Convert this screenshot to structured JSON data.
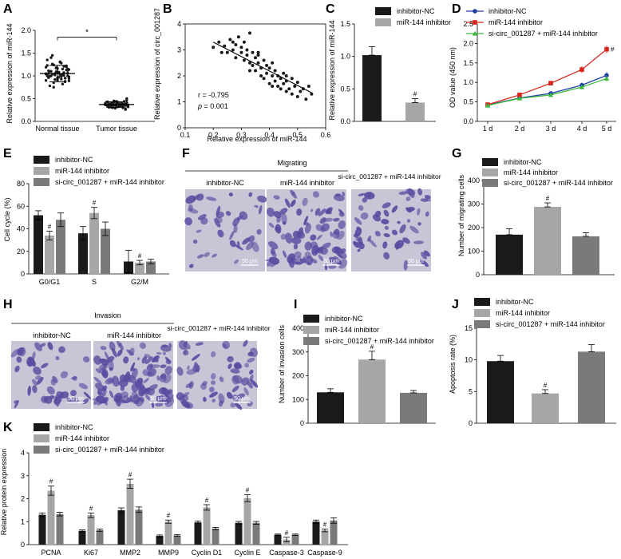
{
  "figure": {
    "panel_letters": [
      "A",
      "B",
      "C",
      "D",
      "E",
      "F",
      "G",
      "H",
      "I",
      "J",
      "K"
    ]
  },
  "colors": {
    "black": "#1a1a1a",
    "lightgray": "#a6a6a6",
    "darkgray": "#7a7a7a",
    "blue": "#1f3fa6",
    "red": "#d6261e",
    "green": "#3db83d",
    "cell": "#5a4aa0",
    "cellbg": "#c7c6d6"
  },
  "microscopy": {
    "F": {
      "group_label": "Migrating",
      "columns": [
        "inhibitor-NC",
        "miR-144 inhibitor",
        "si-circ_001287 + miR-144 inhibitor"
      ],
      "scale": "50 μm"
    },
    "H": {
      "group_label": "Invasion",
      "columns": [
        "inhibitor-NC",
        "miR-144 inhibitor",
        "si-circ_001287 + miR-144 inhibitor"
      ],
      "scale": "50 μm"
    }
  },
  "chart_data": [
    {
      "panel": "A",
      "type": "scatter",
      "categories": [
        "Normal tissue",
        "Tumor tissue"
      ],
      "means": [
        1.05,
        0.37
      ],
      "sd": [
        0.18,
        0.06
      ],
      "ylabel": "Relative expression of miR-144",
      "ylim": [
        0,
        2
      ],
      "yticks": [
        "0.0",
        "0.5",
        "1.0",
        "1.5",
        "2.0"
      ],
      "significance": "*",
      "normal_points": [
        1.05,
        0.98,
        1.12,
        1.22,
        0.88,
        1.01,
        1.15,
        0.93,
        1.3,
        1.08,
        0.96,
        1.18,
        1.02,
        0.85,
        1.26,
        1.1,
        0.99,
        1.05,
        1.35,
        0.9,
        1.14,
        1.0,
        1.2,
        0.95,
        1.07,
        0.82,
        1.28,
        1.03,
        0.97,
        1.16,
        1.09,
        0.92,
        1.24,
        1.04,
        1.4,
        0.78,
        1.11,
        1.0,
        1.19,
        0.94,
        1.06,
        1.13,
        0.87,
        1.21,
        1.02,
        0.99,
        1.31,
        1.08,
        0.91,
        1.17,
        1.05,
        0.75,
        1.45,
        1.0,
        1.1,
        0.96,
        1.23,
        1.04,
        0.89,
        1.15
      ],
      "tumor_points": [
        0.37,
        0.32,
        0.41,
        0.35,
        0.44,
        0.3,
        0.39,
        0.36,
        0.33,
        0.42,
        0.38,
        0.29,
        0.45,
        0.34,
        0.4,
        0.37,
        0.31,
        0.43,
        0.36,
        0.39,
        0.33,
        0.47,
        0.28,
        0.38,
        0.35,
        0.41,
        0.34,
        0.37,
        0.32,
        0.4,
        0.36,
        0.43,
        0.3,
        0.38,
        0.35,
        0.39,
        0.33,
        0.42,
        0.37,
        0.36,
        0.5,
        0.26,
        0.38,
        0.34,
        0.41,
        0.36,
        0.39,
        0.32,
        0.44,
        0.35,
        0.37,
        0.4,
        0.31,
        0.38,
        0.36,
        0.33,
        0.42,
        0.37,
        0.35,
        0.39
      ]
    },
    {
      "panel": "B",
      "type": "scatter",
      "xlabel": "Relative expression of  miR-144",
      "ylabel": "Relative expression of circ_001287",
      "xlim": [
        0.1,
        0.6
      ],
      "ylim": [
        0,
        4
      ],
      "xticks": [
        "0.1",
        "0.2",
        "0.3",
        "0.4",
        "0.5",
        "0.6"
      ],
      "yticks": [
        "0",
        "1",
        "2",
        "3",
        "4"
      ],
      "fit": {
        "x": [
          0.2,
          0.55
        ],
        "y": [
          3.3,
          1.35
        ]
      },
      "r_text": "r = -0.795",
      "p_label": "p",
      "p_value": " = 0.001",
      "points": [
        [
          0.2,
          3.1
        ],
        [
          0.22,
          3.3
        ],
        [
          0.24,
          3.15
        ],
        [
          0.25,
          2.9
        ],
        [
          0.26,
          3.4
        ],
        [
          0.27,
          3.0
        ],
        [
          0.28,
          3.2
        ],
        [
          0.28,
          2.7
        ],
        [
          0.29,
          3.5
        ],
        [
          0.3,
          2.9
        ],
        [
          0.3,
          3.1
        ],
        [
          0.31,
          2.6
        ],
        [
          0.31,
          3.3
        ],
        [
          0.32,
          2.8
        ],
        [
          0.32,
          3.0
        ],
        [
          0.33,
          3.65
        ],
        [
          0.33,
          2.5
        ],
        [
          0.34,
          2.9
        ],
        [
          0.34,
          2.4
        ],
        [
          0.35,
          2.7
        ],
        [
          0.35,
          2.2
        ],
        [
          0.36,
          2.5
        ],
        [
          0.36,
          2.9
        ],
        [
          0.37,
          2.3
        ],
        [
          0.37,
          2.0
        ],
        [
          0.38,
          2.6
        ],
        [
          0.38,
          1.9
        ],
        [
          0.39,
          2.4
        ],
        [
          0.39,
          2.1
        ],
        [
          0.4,
          2.3
        ],
        [
          0.4,
          1.7
        ],
        [
          0.41,
          2.0
        ],
        [
          0.41,
          2.5
        ],
        [
          0.42,
          1.8
        ],
        [
          0.42,
          2.2
        ],
        [
          0.43,
          1.6
        ],
        [
          0.43,
          2.0
        ],
        [
          0.44,
          1.9
        ],
        [
          0.44,
          1.5
        ],
        [
          0.45,
          1.7
        ],
        [
          0.45,
          2.1
        ],
        [
          0.46,
          1.4
        ],
        [
          0.46,
          1.8
        ],
        [
          0.47,
          1.5
        ],
        [
          0.48,
          1.9
        ],
        [
          0.48,
          1.3
        ],
        [
          0.49,
          1.6
        ],
        [
          0.5,
          1.2
        ],
        [
          0.5,
          1.75
        ],
        [
          0.51,
          1.4
        ],
        [
          0.52,
          1.5
        ],
        [
          0.53,
          1.1
        ],
        [
          0.54,
          1.6
        ],
        [
          0.55,
          1.3
        ],
        [
          0.36,
          2.8
        ],
        [
          0.27,
          3.3
        ],
        [
          0.33,
          2.2
        ],
        [
          0.41,
          1.6
        ],
        [
          0.46,
          2.0
        ],
        [
          0.23,
          2.9
        ]
      ]
    },
    {
      "panel": "C",
      "type": "bar",
      "legend": [
        "inhibitor-NC",
        "miR-144 inhibitor"
      ],
      "values": [
        1.02,
        0.29
      ],
      "errors": [
        0.13,
        0.06
      ],
      "ylabel": "Relative expression of miR-144",
      "ylim": [
        0,
        1.5
      ],
      "yticks": [
        "0.0",
        "0.5",
        "1.0",
        "1.5"
      ],
      "annotation": "#"
    },
    {
      "panel": "D",
      "type": "line",
      "categories": [
        "1 d",
        "2 d",
        "3 d",
        "4 d",
        "5 d"
      ],
      "series": [
        {
          "name": "inhibitor-NC",
          "values": [
            0.42,
            0.6,
            0.72,
            0.93,
            1.18
          ],
          "errors": [
            0.03,
            0.04,
            0.05,
            0.07,
            0.09
          ]
        },
        {
          "name": "miR-144 inhibitor",
          "values": [
            0.43,
            0.68,
            0.98,
            1.33,
            1.85
          ],
          "errors": [
            0.03,
            0.04,
            0.06,
            0.09,
            0.1
          ]
        },
        {
          "name": "si-circ_001287 + miR-144 inhibitor",
          "values": [
            0.41,
            0.59,
            0.68,
            0.88,
            1.1
          ],
          "errors": [
            0.03,
            0.04,
            0.05,
            0.06,
            0.08
          ]
        }
      ],
      "ylabel": "OD value (450 nm)",
      "ylim": [
        0,
        2.5
      ],
      "yticks": [
        "0.0",
        "0.5",
        "1.0",
        "1.5",
        "2.0",
        "2.5"
      ],
      "annotation": "#"
    },
    {
      "panel": "E",
      "type": "bar",
      "categories": [
        "G0/G1",
        "S",
        "G2/M"
      ],
      "series": [
        {
          "name": "inhibitor-NC",
          "values": [
            52,
            36,
            11
          ],
          "errors": [
            4,
            6,
            10
          ]
        },
        {
          "name": "miR-144 inhibitor",
          "values": [
            34,
            54,
            10
          ],
          "errors": [
            4,
            5,
            2
          ]
        },
        {
          "name": "si-circ_001287 + miR-144 inhibitor",
          "values": [
            48,
            40,
            11
          ],
          "errors": [
            6,
            6,
            2
          ]
        }
      ],
      "ylabel": "Cell cycle (%)",
      "ylim": [
        0,
        80
      ],
      "yticks": [
        "0",
        "20",
        "40",
        "60",
        "80"
      ],
      "annotation": "#"
    },
    {
      "panel": "G",
      "type": "bar",
      "legend": [
        "inhibitor-NC",
        "miR-144 inhibitor",
        "si-circ_001287 + miR-144 inhibitor"
      ],
      "values": [
        170,
        288,
        163
      ],
      "errors": [
        25,
        17,
        15
      ],
      "ylabel": "Number of migrating cells",
      "ylim": [
        0,
        400
      ],
      "yticks": [
        "0",
        "100",
        "200",
        "300",
        "400"
      ],
      "annotation": "#"
    },
    {
      "panel": "I",
      "type": "bar",
      "legend": [
        "inhibitor-NC",
        "miR-144 inhibitor",
        "si-circ_001287 + miR-144 inhibitor"
      ],
      "values": [
        130,
        268,
        128
      ],
      "errors": [
        15,
        35,
        10
      ],
      "ylabel": "Number of invasion cells",
      "ylim": [
        0,
        400
      ],
      "yticks": [
        "0",
        "100",
        "200",
        "300",
        "400"
      ],
      "annotation": "#"
    },
    {
      "panel": "J",
      "type": "bar",
      "legend": [
        "inhibitor-NC",
        "miR-144 inhibitor",
        "si-circ_001287 + miR-144 inhibitor"
      ],
      "values": [
        9.8,
        4.7,
        11.3
      ],
      "errors": [
        0.9,
        0.6,
        1.1
      ],
      "ylabel": "Apoptosis rate (%)",
      "ylim": [
        0,
        15
      ],
      "yticks": [
        "0",
        "5",
        "10",
        "15"
      ],
      "annotation": "#"
    },
    {
      "panel": "K",
      "type": "bar",
      "categories": [
        "PCNA",
        "Ki67",
        "MMP2",
        "MMP9",
        "Cyclin D1",
        "Cyclin E",
        "Caspase-3",
        "Caspase-9"
      ],
      "series": [
        {
          "name": "inhibitor-NC",
          "values": [
            1.3,
            0.6,
            1.5,
            0.38,
            0.97,
            0.95,
            0.43,
            1.0
          ],
          "errors": [
            0.08,
            0.04,
            0.1,
            0.04,
            0.06,
            0.06,
            0.03,
            0.07
          ]
        },
        {
          "name": "miR-144 inhibitor",
          "values": [
            2.35,
            1.28,
            2.65,
            1.0,
            1.62,
            2.02,
            0.22,
            0.62
          ],
          "errors": [
            0.2,
            0.1,
            0.2,
            0.07,
            0.12,
            0.15,
            0.1,
            0.06
          ]
        },
        {
          "name": "si-circ_001287 + miR-144 inhibitor",
          "values": [
            1.33,
            0.63,
            1.52,
            0.4,
            0.7,
            0.95,
            0.43,
            1.05
          ],
          "errors": [
            0.08,
            0.05,
            0.12,
            0.04,
            0.05,
            0.06,
            0.03,
            0.12
          ]
        }
      ],
      "ylabel": "Relative protein expression",
      "ylim": [
        0,
        4
      ],
      "yticks": [
        "0",
        "1",
        "2",
        "3",
        "4"
      ],
      "annotation": "#"
    }
  ]
}
